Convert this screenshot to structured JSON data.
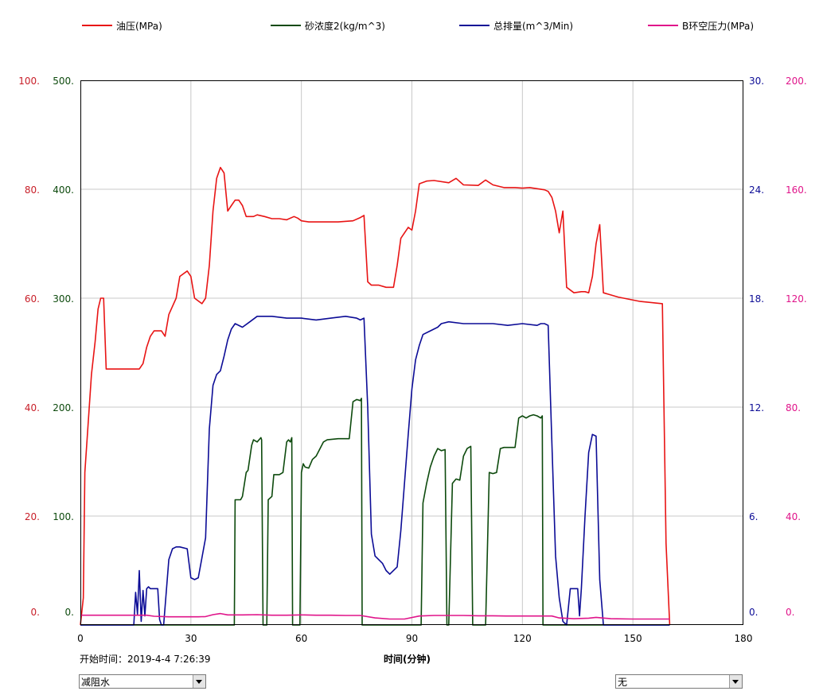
{
  "chart_data": {
    "type": "line",
    "legend": [
      {
        "name": "油压(MPa)",
        "color": "#e81414"
      },
      {
        "name": "砂浓度2(kg/m^3)",
        "color": "#0d4a0d"
      },
      {
        "name": "总排量(m^3/Min)",
        "color": "#0c0c96"
      },
      {
        "name": "B环空压力(MPa)",
        "color": "#e0148a"
      }
    ],
    "xlabel": "时间(分钟)",
    "x_ticks": [
      "0",
      "30",
      "60",
      "90",
      "120",
      "150",
      "180"
    ],
    "xlim": [
      0,
      180
    ],
    "grid": true,
    "axes": [
      {
        "side": "left-outer",
        "color": "#c81e28",
        "ylim": [
          0,
          100
        ],
        "ticks": [
          "0.",
          "20.",
          "40.",
          "60.",
          "80.",
          "100."
        ]
      },
      {
        "side": "left-inner",
        "color": "#0d4a0d",
        "ylim": [
          0,
          500
        ],
        "ticks": [
          "0.",
          "100.",
          "200.",
          "300.",
          "400.",
          "500."
        ]
      },
      {
        "side": "right-inner",
        "color": "#0c0c96",
        "ylim": [
          0,
          30
        ],
        "ticks": [
          "0.",
          "6.",
          "12.",
          "18.",
          "24.",
          "30."
        ]
      },
      {
        "side": "right-outer",
        "color": "#e0148a",
        "ylim": [
          0,
          200
        ],
        "ticks": [
          "0.",
          "40.",
          "80.",
          "120.",
          "160.",
          "200."
        ]
      }
    ],
    "series": [
      {
        "name": "油压(MPa)",
        "axis": 0,
        "color": "#e81414",
        "x": [
          0,
          0.8,
          1.2,
          2,
          3,
          4,
          4.8,
          5.5,
          6.3,
          7,
          10,
          16,
          17,
          18,
          19,
          20,
          22,
          23,
          24,
          26,
          27,
          29,
          30,
          31,
          33,
          34,
          35,
          36,
          37,
          38,
          39,
          40,
          41,
          42,
          43,
          44,
          45,
          47,
          48,
          50,
          52,
          54,
          56,
          58,
          59,
          60,
          62,
          64,
          68,
          70,
          74,
          76,
          77,
          78,
          79,
          81,
          83,
          85,
          86,
          87,
          89,
          90,
          91,
          92,
          94,
          96,
          100,
          102,
          104,
          108,
          110,
          112,
          115,
          118,
          120,
          122,
          126,
          127,
          128,
          129,
          130,
          131,
          132,
          134,
          136,
          137,
          138,
          139,
          140,
          141,
          142,
          146,
          152,
          158,
          159,
          160
        ],
        "y": [
          0,
          5,
          28,
          36,
          46,
          52,
          58,
          60,
          60,
          47,
          47,
          47,
          48,
          51,
          53,
          54,
          54,
          53,
          57,
          60,
          64,
          65,
          64,
          60,
          59,
          60,
          66,
          76,
          82,
          84,
          83,
          76,
          77,
          78,
          78,
          77,
          75,
          75,
          75.3,
          75,
          74.6,
          74.6,
          74.4,
          75,
          74.7,
          74.2,
          74,
          74,
          74,
          74,
          74.2,
          74.8,
          75.2,
          63,
          62.4,
          62.4,
          62,
          62,
          66,
          71,
          73,
          72.5,
          76,
          81,
          81.5,
          81.6,
          81.2,
          82,
          80.8,
          80.7,
          81.7,
          80.8,
          80.3,
          80.3,
          80.2,
          80.3,
          79.9,
          79.6,
          78.5,
          76,
          72,
          76,
          62,
          61,
          61.2,
          61.2,
          61,
          64,
          70,
          73.5,
          61,
          60.2,
          59.4,
          59,
          15,
          0
        ]
      },
      {
        "name": "砂浓度2(kg/m^3)",
        "axis": 1,
        "color": "#0d4a0d",
        "x": [
          0,
          41.8,
          42,
          43.5,
          44,
          45,
          45.5,
          46.5,
          47,
          48,
          49,
          49.2,
          49.6,
          50.6,
          51,
          52,
          52.5,
          54,
          55,
          56,
          56.5,
          57,
          57.4,
          57.6,
          59.6,
          60,
          60.5,
          61,
          62,
          63,
          64,
          66,
          67,
          70,
          73,
          74,
          75,
          76,
          76.3,
          76.5,
          92.5,
          93,
          94,
          95,
          96,
          97,
          98,
          99,
          99.5,
          100,
          101,
          102,
          103,
          104,
          105,
          106,
          106.5,
          110,
          111,
          112,
          113,
          114,
          115,
          116,
          117,
          118,
          119,
          120,
          121,
          122,
          123,
          124,
          125,
          125.4,
          125.6,
          160
        ],
        "y": [
          0,
          0,
          115,
          115,
          118,
          140,
          142,
          165,
          170,
          168,
          172,
          170,
          0,
          0,
          115,
          118,
          138,
          138,
          140,
          168,
          170,
          168,
          172,
          0,
          0,
          140,
          148,
          145,
          144,
          152,
          155,
          168,
          170,
          171,
          171,
          205,
          207,
          206,
          208,
          0,
          0,
          112,
          130,
          145,
          155,
          162,
          160,
          161,
          0,
          0,
          130,
          134,
          133,
          155,
          162,
          164,
          0,
          0,
          140,
          139,
          140,
          162,
          163,
          163,
          163,
          163,
          190,
          192,
          190,
          192,
          193,
          192,
          190,
          192,
          0,
          0
        ]
      },
      {
        "name": "总排量(m^3/Min)",
        "axis": 2,
        "color": "#0c0c96",
        "x": [
          0,
          14.5,
          15,
          15.5,
          16,
          16.5,
          17,
          17.5,
          18,
          18.5,
          19,
          21,
          21.5,
          22,
          22.6,
          23,
          24,
          25,
          26,
          27,
          29,
          30,
          31,
          32,
          34,
          35,
          36,
          37,
          38,
          39,
          40,
          41,
          42,
          44,
          46,
          48,
          52,
          56,
          60,
          64,
          68,
          72,
          75,
          76,
          77,
          78,
          79,
          80,
          82,
          83,
          84,
          86,
          87,
          89,
          90,
          91,
          92,
          93,
          95,
          97,
          98,
          100,
          104,
          108,
          112,
          116,
          120,
          124,
          125,
          126,
          127,
          128,
          129,
          130,
          131,
          132,
          133,
          135,
          135.5,
          136,
          137,
          138,
          139,
          140,
          141,
          142,
          160
        ],
        "y": [
          0,
          0,
          1.8,
          0.6,
          3.0,
          0.2,
          1.9,
          0.5,
          2.0,
          2.1,
          2.0,
          2.0,
          0.3,
          0,
          0,
          1.0,
          3.6,
          4.2,
          4.3,
          4.3,
          4.2,
          2.6,
          2.5,
          2.6,
          4.8,
          10.8,
          13.2,
          13.8,
          14.0,
          14.8,
          15.7,
          16.3,
          16.6,
          16.4,
          16.7,
          17.0,
          17.0,
          16.9,
          16.9,
          16.8,
          16.9,
          17.0,
          16.9,
          16.8,
          16.9,
          12.0,
          5.0,
          3.8,
          3.4,
          3.0,
          2.8,
          3.2,
          5.2,
          10.5,
          13.0,
          14.6,
          15.4,
          16.0,
          16.2,
          16.4,
          16.6,
          16.7,
          16.6,
          16.6,
          16.6,
          16.5,
          16.6,
          16.5,
          16.6,
          16.6,
          16.5,
          10.0,
          3.8,
          1.5,
          0.2,
          0,
          2.0,
          2.0,
          0.5,
          2.0,
          6.0,
          9.5,
          10.5,
          10.4,
          2.5,
          0,
          0
        ]
      },
      {
        "name": "B环空压力(MPa)",
        "axis": 3,
        "color": "#e0148a",
        "x": [
          0,
          10,
          18,
          20,
          24,
          28,
          32,
          34,
          36,
          38,
          40,
          44,
          48,
          52,
          56,
          60,
          64,
          68,
          72,
          76,
          80,
          84,
          88,
          92,
          96,
          100,
          104,
          108,
          112,
          116,
          120,
          124,
          128,
          130,
          134,
          138,
          140,
          144,
          150,
          156,
          160
        ],
        "y": [
          3.6,
          3.6,
          3.6,
          3.2,
          3.0,
          3.0,
          3.0,
          3.1,
          3.8,
          4.2,
          3.7,
          3.7,
          3.8,
          3.6,
          3.6,
          3.7,
          3.6,
          3.6,
          3.5,
          3.5,
          2.6,
          2.2,
          2.2,
          3.3,
          3.5,
          3.5,
          3.5,
          3.4,
          3.4,
          3.3,
          3.3,
          3.3,
          3.3,
          2.6,
          2.3,
          2.5,
          2.8,
          2.3,
          2.2,
          2.2,
          2.2
        ]
      }
    ]
  },
  "footer": {
    "start_time": "开始时间：2019-4-4 7:26:39",
    "left_select": "减阻水",
    "right_select": "无"
  }
}
